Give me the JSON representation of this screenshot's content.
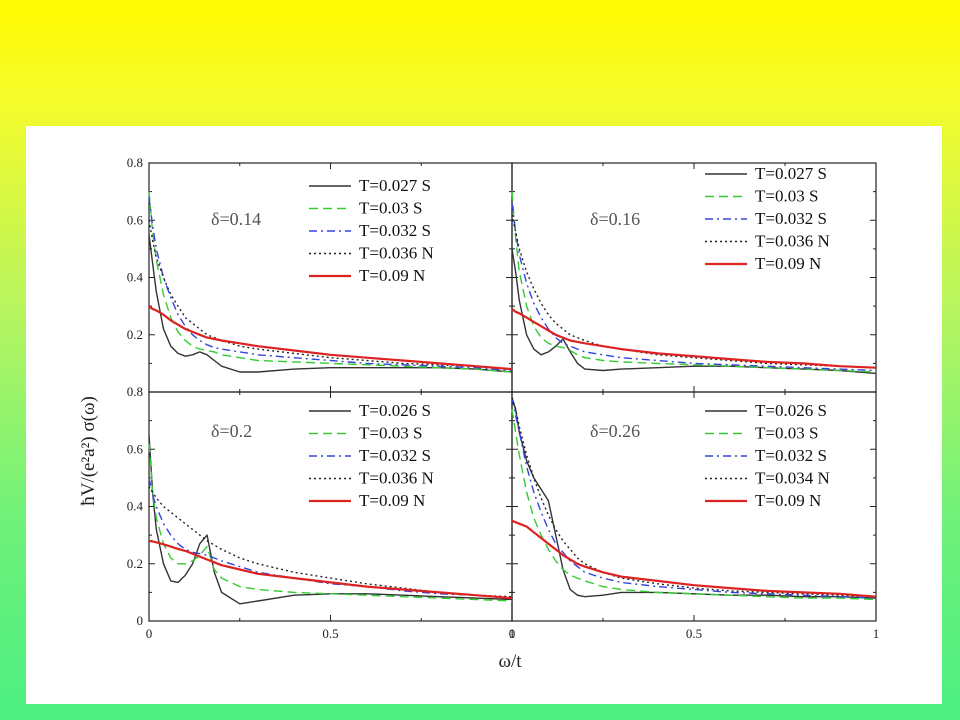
{
  "chart_data": {
    "type": "line",
    "ylabel": "ħV/(e²a²) σ(ω)",
    "xlabel": "ω/t",
    "xlim": [
      0,
      1
    ],
    "ylim": [
      0,
      0.8
    ],
    "x_ticks": [
      "0",
      "0.5",
      "1"
    ],
    "y_ticks": [
      "0",
      "0.2",
      "0.4",
      "0.6",
      "0.8"
    ],
    "grid": false,
    "legend_position": "top-right",
    "x": [
      0,
      0.01,
      0.02,
      0.04,
      0.06,
      0.08,
      0.1,
      0.12,
      0.14,
      0.16,
      0.18,
      0.2,
      0.25,
      0.3,
      0.4,
      0.5,
      0.6,
      0.7,
      0.8,
      0.9,
      1.0
    ],
    "panels": [
      {
        "label": "δ=0.14",
        "series": [
          {
            "name": "T=0.027 S",
            "color": "#333333",
            "dash": "solid",
            "values": [
              0.55,
              0.45,
              0.35,
              0.22,
              0.16,
              0.135,
              0.125,
              0.13,
              0.14,
              0.13,
              0.11,
              0.09,
              0.07,
              0.07,
              0.08,
              0.085,
              0.085,
              0.085,
              0.085,
              0.08,
              0.07
            ]
          },
          {
            "name": "T=0.03 S",
            "color": "#33cc33",
            "dash": "dash",
            "values": [
              0.7,
              0.56,
              0.46,
              0.34,
              0.26,
              0.21,
              0.18,
              0.16,
              0.15,
              0.145,
              0.14,
              0.13,
              0.12,
              0.11,
              0.105,
              0.1,
              0.095,
              0.09,
              0.085,
              0.08,
              0.07
            ]
          },
          {
            "name": "T=0.032 S",
            "color": "#3344dd",
            "dash": "dashdot",
            "values": [
              0.68,
              0.58,
              0.5,
              0.4,
              0.33,
              0.27,
              0.23,
              0.2,
              0.18,
              0.165,
              0.155,
              0.15,
              0.14,
              0.13,
              0.12,
              0.11,
              0.1,
              0.095,
              0.09,
              0.085,
              0.075
            ]
          },
          {
            "name": "T=0.036 N",
            "color": "#222222",
            "dash": "dot",
            "values": [
              0.6,
              0.53,
              0.47,
              0.4,
              0.34,
              0.3,
              0.26,
              0.24,
              0.22,
              0.2,
              0.19,
              0.18,
              0.16,
              0.15,
              0.135,
              0.12,
              0.11,
              0.1,
              0.095,
              0.09,
              0.08
            ]
          },
          {
            "name": "T=0.09 N",
            "color": "#dd2222",
            "dash": "solid",
            "values": [
              0.3,
              0.29,
              0.285,
              0.27,
              0.25,
              0.235,
              0.22,
              0.21,
              0.2,
              0.19,
              0.185,
              0.18,
              0.17,
              0.16,
              0.145,
              0.13,
              0.12,
              0.11,
              0.1,
              0.09,
              0.08
            ]
          }
        ]
      },
      {
        "label": "δ=0.16",
        "series": [
          {
            "name": "T=0.027 S",
            "color": "#333333",
            "dash": "solid",
            "values": [
              0.5,
              0.42,
              0.32,
              0.2,
              0.15,
              0.13,
              0.14,
              0.16,
              0.185,
              0.14,
              0.1,
              0.08,
              0.075,
              0.08,
              0.085,
              0.09,
              0.09,
              0.085,
              0.08,
              0.075,
              0.065
            ]
          },
          {
            "name": "T=0.03 S",
            "color": "#33cc33",
            "dash": "dash",
            "values": [
              0.7,
              0.54,
              0.42,
              0.3,
              0.23,
              0.19,
              0.17,
              0.16,
              0.155,
              0.145,
              0.13,
              0.12,
              0.11,
              0.105,
              0.1,
              0.095,
              0.09,
              0.085,
              0.08,
              0.075,
              0.07
            ]
          },
          {
            "name": "T=0.032 S",
            "color": "#3344dd",
            "dash": "dashdot",
            "values": [
              0.66,
              0.56,
              0.48,
              0.38,
              0.31,
              0.26,
              0.22,
              0.19,
              0.17,
              0.16,
              0.15,
              0.14,
              0.13,
              0.12,
              0.11,
              0.1,
              0.095,
              0.09,
              0.085,
              0.08,
              0.075
            ]
          },
          {
            "name": "T=0.036 N",
            "color": "#222222",
            "dash": "dot",
            "values": [
              0.62,
              0.56,
              0.5,
              0.42,
              0.36,
              0.31,
              0.27,
              0.24,
              0.22,
              0.2,
              0.19,
              0.18,
              0.16,
              0.15,
              0.13,
              0.12,
              0.11,
              0.1,
              0.095,
              0.09,
              0.085
            ]
          },
          {
            "name": "T=0.09 N",
            "color": "#dd2222",
            "dash": "solid",
            "values": [
              0.29,
              0.28,
              0.275,
              0.26,
              0.245,
              0.23,
              0.215,
              0.2,
              0.19,
              0.18,
              0.175,
              0.17,
              0.16,
              0.15,
              0.135,
              0.125,
              0.115,
              0.105,
              0.1,
              0.09,
              0.085
            ]
          }
        ]
      },
      {
        "label": "δ=0.2",
        "series": [
          {
            "name": "T=0.026 S",
            "color": "#333333",
            "dash": "solid",
            "values": [
              0.65,
              0.45,
              0.32,
              0.2,
              0.14,
              0.135,
              0.16,
              0.2,
              0.27,
              0.3,
              0.17,
              0.1,
              0.06,
              0.07,
              0.09,
              0.095,
              0.095,
              0.09,
              0.085,
              0.08,
              0.075
            ]
          },
          {
            "name": "T=0.03 S",
            "color": "#33cc33",
            "dash": "dash",
            "values": [
              0.62,
              0.45,
              0.36,
              0.27,
              0.22,
              0.2,
              0.2,
              0.21,
              0.23,
              0.26,
              0.18,
              0.15,
              0.12,
              0.11,
              0.1,
              0.095,
              0.09,
              0.085,
              0.08,
              0.075,
              0.07
            ]
          },
          {
            "name": "T=0.032 S",
            "color": "#3344dd",
            "dash": "dashdot",
            "values": [
              0.5,
              0.44,
              0.4,
              0.34,
              0.3,
              0.27,
              0.25,
              0.24,
              0.235,
              0.23,
              0.22,
              0.21,
              0.19,
              0.17,
              0.15,
              0.13,
              0.12,
              0.105,
              0.095,
              0.09,
              0.08
            ]
          },
          {
            "name": "T=0.036 N",
            "color": "#222222",
            "dash": "dot",
            "values": [
              0.47,
              0.45,
              0.43,
              0.4,
              0.38,
              0.36,
              0.34,
              0.32,
              0.3,
              0.28,
              0.265,
              0.25,
              0.22,
              0.2,
              0.17,
              0.15,
              0.13,
              0.115,
              0.1,
              0.09,
              0.085
            ]
          },
          {
            "name": "T=0.09 N",
            "color": "#dd2222",
            "dash": "solid",
            "values": [
              0.28,
              0.278,
              0.275,
              0.268,
              0.26,
              0.252,
              0.245,
              0.235,
              0.225,
              0.215,
              0.205,
              0.195,
              0.18,
              0.165,
              0.15,
              0.135,
              0.12,
              0.11,
              0.1,
              0.09,
              0.08
            ]
          }
        ]
      },
      {
        "label": "δ=0.26",
        "series": [
          {
            "name": "T=0.026 S",
            "color": "#333333",
            "dash": "solid",
            "values": [
              0.78,
              0.74,
              0.66,
              0.56,
              0.5,
              0.46,
              0.42,
              0.3,
              0.18,
              0.11,
              0.09,
              0.085,
              0.09,
              0.1,
              0.1,
              0.095,
              0.09,
              0.09,
              0.085,
              0.085,
              0.08
            ]
          },
          {
            "name": "T=0.03 S",
            "color": "#33cc33",
            "dash": "dash",
            "values": [
              0.74,
              0.66,
              0.58,
              0.45,
              0.36,
              0.3,
              0.25,
              0.21,
              0.18,
              0.16,
              0.15,
              0.14,
              0.12,
              0.11,
              0.1,
              0.095,
              0.09,
              0.085,
              0.08,
              0.08,
              0.075
            ]
          },
          {
            "name": "T=0.032 S",
            "color": "#3344dd",
            "dash": "dashdot",
            "values": [
              0.78,
              0.72,
              0.66,
              0.54,
              0.45,
              0.38,
              0.32,
              0.27,
              0.24,
              0.21,
              0.19,
              0.17,
              0.15,
              0.135,
              0.12,
              0.11,
              0.1,
              0.095,
              0.09,
              0.085,
              0.08
            ]
          },
          {
            "name": "T=0.034 N",
            "color": "#222222",
            "dash": "dot",
            "values": [
              0.78,
              0.74,
              0.68,
              0.58,
              0.5,
              0.43,
              0.37,
              0.32,
              0.28,
              0.25,
              0.22,
              0.2,
              0.17,
              0.15,
              0.13,
              0.115,
              0.105,
              0.1,
              0.095,
              0.09,
              0.085
            ]
          },
          {
            "name": "T=0.09 N",
            "color": "#dd2222",
            "dash": "solid",
            "values": [
              0.35,
              0.345,
              0.34,
              0.33,
              0.31,
              0.29,
              0.27,
              0.25,
              0.23,
              0.215,
              0.2,
              0.19,
              0.17,
              0.155,
              0.14,
              0.125,
              0.115,
              0.105,
              0.1,
              0.095,
              0.085
            ]
          }
        ]
      }
    ]
  },
  "colors": {
    "background_top": "#fffa00",
    "background_bottom": "#4cef82",
    "panel": "#ffffff"
  }
}
